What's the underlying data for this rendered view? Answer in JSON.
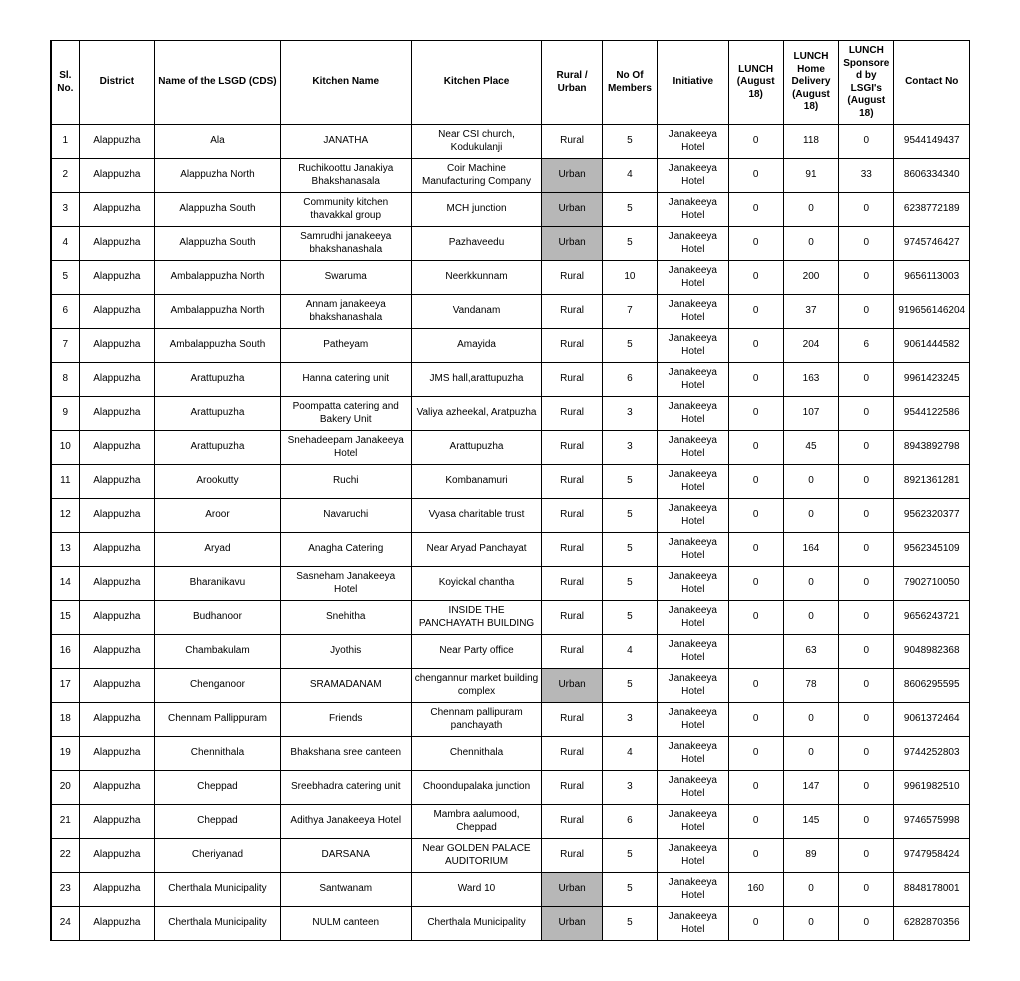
{
  "headers": {
    "sl": "Sl. No.",
    "district": "District",
    "lsgd": "Name of the LSGD (CDS)",
    "kname": "Kitchen Name",
    "kplace": "Kitchen Place",
    "rural": "Rural / Urban",
    "members": "No Of Members",
    "initiative": "Initiative",
    "lunch": "LUNCH (August 18)",
    "home": "LUNCH Home Delivery (August 18)",
    "sponsored": "LUNCH Sponsored by LSGI's (August 18)",
    "contact": "Contact No"
  },
  "rows": [
    {
      "sl": "1",
      "district": "Alappuzha",
      "lsgd": "Ala",
      "kname": "JANATHA",
      "kplace": "Near CSI church, Kodukulanji",
      "rural": "Rural",
      "members": "5",
      "initiative": "Janakeeya Hotel",
      "lunch": "0",
      "home": "118",
      "sponsored": "0",
      "contact": "9544149437"
    },
    {
      "sl": "2",
      "district": "Alappuzha",
      "lsgd": "Alappuzha North",
      "kname": "Ruchikoottu Janakiya Bhakshanasala",
      "kplace": "Coir Machine Manufacturing Company",
      "rural": "Urban",
      "members": "4",
      "initiative": "Janakeeya Hotel",
      "lunch": "0",
      "home": "91",
      "sponsored": "33",
      "contact": "8606334340"
    },
    {
      "sl": "3",
      "district": "Alappuzha",
      "lsgd": "Alappuzha South",
      "kname": "Community kitchen thavakkal group",
      "kplace": "MCH junction",
      "rural": "Urban",
      "members": "5",
      "initiative": "Janakeeya Hotel",
      "lunch": "0",
      "home": "0",
      "sponsored": "0",
      "contact": "6238772189"
    },
    {
      "sl": "4",
      "district": "Alappuzha",
      "lsgd": "Alappuzha South",
      "kname": "Samrudhi janakeeya bhakshanashala",
      "kplace": "Pazhaveedu",
      "rural": "Urban",
      "members": "5",
      "initiative": "Janakeeya Hotel",
      "lunch": "0",
      "home": "0",
      "sponsored": "0",
      "contact": "9745746427"
    },
    {
      "sl": "5",
      "district": "Alappuzha",
      "lsgd": "Ambalappuzha North",
      "kname": "Swaruma",
      "kplace": "Neerkkunnam",
      "rural": "Rural",
      "members": "10",
      "initiative": "Janakeeya Hotel",
      "lunch": "0",
      "home": "200",
      "sponsored": "0",
      "contact": "9656113003"
    },
    {
      "sl": "6",
      "district": "Alappuzha",
      "lsgd": "Ambalappuzha North",
      "kname": "Annam janakeeya bhakshanashala",
      "kplace": "Vandanam",
      "rural": "Rural",
      "members": "7",
      "initiative": "Janakeeya Hotel",
      "lunch": "0",
      "home": "37",
      "sponsored": "0",
      "contact": "919656146204"
    },
    {
      "sl": "7",
      "district": "Alappuzha",
      "lsgd": "Ambalappuzha South",
      "kname": "Patheyam",
      "kplace": "Amayida",
      "rural": "Rural",
      "members": "5",
      "initiative": "Janakeeya Hotel",
      "lunch": "0",
      "home": "204",
      "sponsored": "6",
      "contact": "9061444582"
    },
    {
      "sl": "8",
      "district": "Alappuzha",
      "lsgd": "Arattupuzha",
      "kname": "Hanna catering unit",
      "kplace": "JMS hall,arattupuzha",
      "rural": "Rural",
      "members": "6",
      "initiative": "Janakeeya Hotel",
      "lunch": "0",
      "home": "163",
      "sponsored": "0",
      "contact": "9961423245"
    },
    {
      "sl": "9",
      "district": "Alappuzha",
      "lsgd": "Arattupuzha",
      "kname": "Poompatta catering and Bakery Unit",
      "kplace": "Valiya azheekal, Aratpuzha",
      "rural": "Rural",
      "members": "3",
      "initiative": "Janakeeya Hotel",
      "lunch": "0",
      "home": "107",
      "sponsored": "0",
      "contact": "9544122586"
    },
    {
      "sl": "10",
      "district": "Alappuzha",
      "lsgd": "Arattupuzha",
      "kname": "Snehadeepam Janakeeya Hotel",
      "kplace": "Arattupuzha",
      "rural": "Rural",
      "members": "3",
      "initiative": "Janakeeya Hotel",
      "lunch": "0",
      "home": "45",
      "sponsored": "0",
      "contact": "8943892798"
    },
    {
      "sl": "11",
      "district": "Alappuzha",
      "lsgd": "Arookutty",
      "kname": "Ruchi",
      "kplace": "Kombanamuri",
      "rural": "Rural",
      "members": "5",
      "initiative": "Janakeeya Hotel",
      "lunch": "0",
      "home": "0",
      "sponsored": "0",
      "contact": "8921361281"
    },
    {
      "sl": "12",
      "district": "Alappuzha",
      "lsgd": "Aroor",
      "kname": "Navaruchi",
      "kplace": "Vyasa charitable trust",
      "rural": "Rural",
      "members": "5",
      "initiative": "Janakeeya Hotel",
      "lunch": "0",
      "home": "0",
      "sponsored": "0",
      "contact": "9562320377"
    },
    {
      "sl": "13",
      "district": "Alappuzha",
      "lsgd": "Aryad",
      "kname": "Anagha Catering",
      "kplace": "Near Aryad Panchayat",
      "rural": "Rural",
      "members": "5",
      "initiative": "Janakeeya Hotel",
      "lunch": "0",
      "home": "164",
      "sponsored": "0",
      "contact": "9562345109"
    },
    {
      "sl": "14",
      "district": "Alappuzha",
      "lsgd": "Bharanikavu",
      "kname": "Sasneham Janakeeya Hotel",
      "kplace": "Koyickal chantha",
      "rural": "Rural",
      "members": "5",
      "initiative": "Janakeeya Hotel",
      "lunch": "0",
      "home": "0",
      "sponsored": "0",
      "contact": "7902710050"
    },
    {
      "sl": "15",
      "district": "Alappuzha",
      "lsgd": "Budhanoor",
      "kname": "Snehitha",
      "kplace": "INSIDE THE PANCHAYATH BUILDING",
      "rural": "Rural",
      "members": "5",
      "initiative": "Janakeeya Hotel",
      "lunch": "0",
      "home": "0",
      "sponsored": "0",
      "contact": "9656243721"
    },
    {
      "sl": "16",
      "district": "Alappuzha",
      "lsgd": "Chambakulam",
      "kname": "Jyothis",
      "kplace": "Near Party office",
      "rural": "Rural",
      "members": "4",
      "initiative": "Janakeeya Hotel",
      "lunch": "",
      "home": "63",
      "sponsored": "0",
      "contact": "9048982368"
    },
    {
      "sl": "17",
      "district": "Alappuzha",
      "lsgd": "Chenganoor",
      "kname": "SRAMADANAM",
      "kplace": "chengannur market building complex",
      "rural": "Urban",
      "members": "5",
      "initiative": "Janakeeya Hotel",
      "lunch": "0",
      "home": "78",
      "sponsored": "0",
      "contact": "8606295595"
    },
    {
      "sl": "18",
      "district": "Alappuzha",
      "lsgd": "Chennam Pallippuram",
      "kname": "Friends",
      "kplace": "Chennam pallipuram panchayath",
      "rural": "Rural",
      "members": "3",
      "initiative": "Janakeeya Hotel",
      "lunch": "0",
      "home": "0",
      "sponsored": "0",
      "contact": "9061372464"
    },
    {
      "sl": "19",
      "district": "Alappuzha",
      "lsgd": "Chennithala",
      "kname": "Bhakshana sree canteen",
      "kplace": "Chennithala",
      "rural": "Rural",
      "members": "4",
      "initiative": "Janakeeya Hotel",
      "lunch": "0",
      "home": "0",
      "sponsored": "0",
      "contact": "9744252803"
    },
    {
      "sl": "20",
      "district": "Alappuzha",
      "lsgd": "Cheppad",
      "kname": "Sreebhadra catering unit",
      "kplace": "Choondupalaka junction",
      "rural": "Rural",
      "members": "3",
      "initiative": "Janakeeya Hotel",
      "lunch": "0",
      "home": "147",
      "sponsored": "0",
      "contact": "9961982510"
    },
    {
      "sl": "21",
      "district": "Alappuzha",
      "lsgd": "Cheppad",
      "kname": "Adithya Janakeeya Hotel",
      "kplace": "Mambra aalumood, Cheppad",
      "rural": "Rural",
      "members": "6",
      "initiative": "Janakeeya Hotel",
      "lunch": "0",
      "home": "145",
      "sponsored": "0",
      "contact": "9746575998"
    },
    {
      "sl": "22",
      "district": "Alappuzha",
      "lsgd": "Cheriyanad",
      "kname": "DARSANA",
      "kplace": "Near GOLDEN PALACE AUDITORIUM",
      "rural": "Rural",
      "members": "5",
      "initiative": "Janakeeya Hotel",
      "lunch": "0",
      "home": "89",
      "sponsored": "0",
      "contact": "9747958424"
    },
    {
      "sl": "23",
      "district": "Alappuzha",
      "lsgd": "Cherthala Municipality",
      "kname": "Santwanam",
      "kplace": "Ward 10",
      "rural": "Urban",
      "members": "5",
      "initiative": "Janakeeya Hotel",
      "lunch": "160",
      "home": "0",
      "sponsored": "0",
      "contact": "8848178001"
    },
    {
      "sl": "24",
      "district": "Alappuzha",
      "lsgd": "Cherthala Municipality",
      "kname": "NULM canteen",
      "kplace": "Cherthala Municipality",
      "rural": "Urban",
      "members": "5",
      "initiative": "Janakeeya Hotel",
      "lunch": "0",
      "home": "0",
      "sponsored": "0",
      "contact": "6282870356"
    }
  ]
}
